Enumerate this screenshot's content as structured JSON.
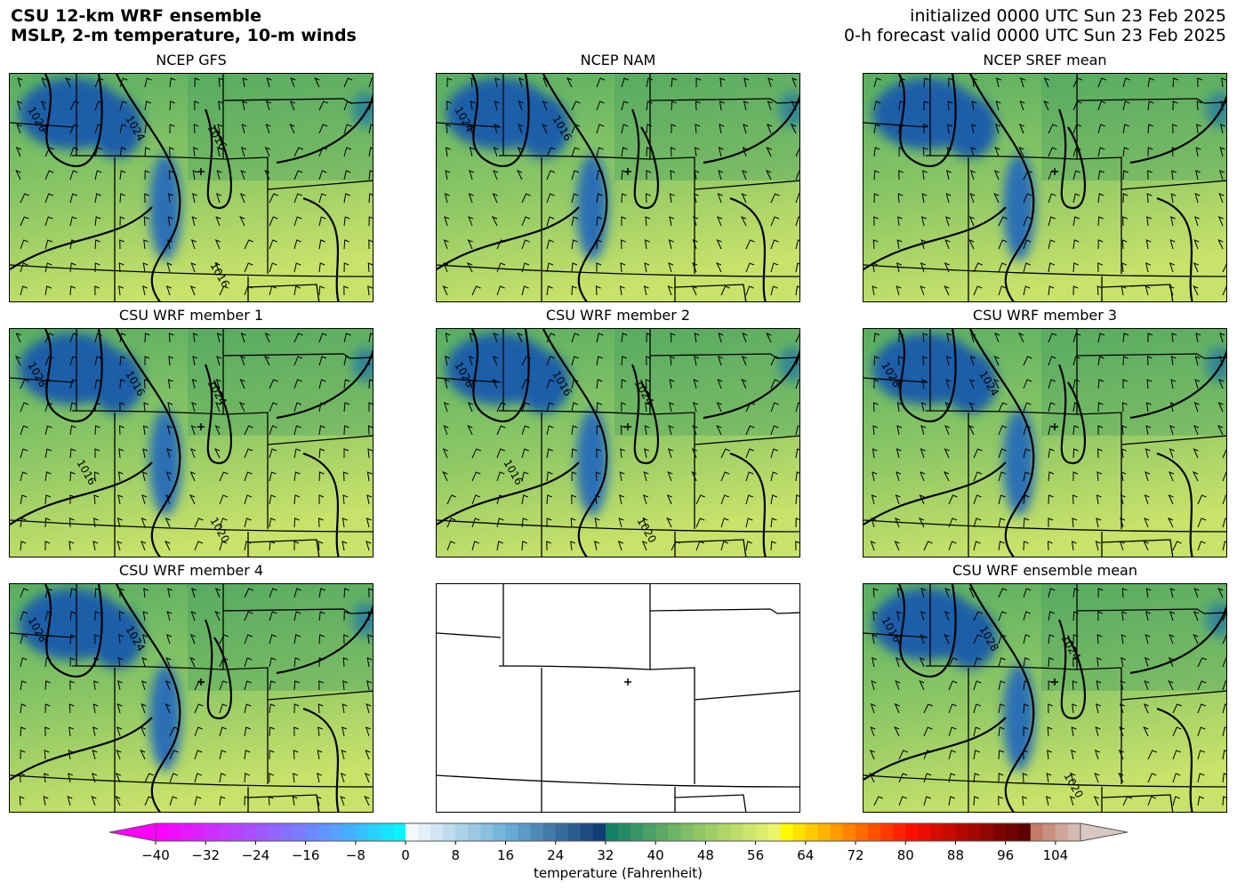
{
  "header": {
    "title_line1": "CSU 12-km WRF ensemble",
    "title_line2": "MSLP, 2-m temperature, 10-m winds",
    "init_line": "initialized 0000 UTC Sun 23 Feb 2025",
    "valid_line": "0-h forecast valid 0000 UTC Sun 23 Feb 2025"
  },
  "panels": [
    {
      "title": "NCEP GFS",
      "empty": false,
      "contour_labels": [
        "1020",
        "1024",
        "1016",
        "1016"
      ]
    },
    {
      "title": "NCEP NAM",
      "empty": false,
      "contour_labels": [
        "1024",
        "1016"
      ]
    },
    {
      "title": "NCEP SREF mean",
      "empty": false,
      "contour_labels": []
    },
    {
      "title": "CSU WRF member 1",
      "empty": false,
      "contour_labels": [
        "1028",
        "1016",
        "1024",
        "1020",
        "1016"
      ]
    },
    {
      "title": "CSU WRF member 2",
      "empty": false,
      "contour_labels": [
        "1028",
        "1016",
        "1024",
        "1020",
        "1016"
      ]
    },
    {
      "title": "CSU WRF member 3",
      "empty": false,
      "contour_labels": [
        "1028",
        "1024"
      ]
    },
    {
      "title": "CSU WRF member 4",
      "empty": false,
      "contour_labels": [
        "1028",
        "1024"
      ]
    },
    {
      "title": "",
      "empty": true,
      "contour_labels": []
    },
    {
      "title": "CSU WRF ensemble mean",
      "empty": false,
      "contour_labels": [
        "1016",
        "1028",
        "1024",
        "1020"
      ]
    }
  ],
  "colorbar": {
    "label": "temperature (Fahrenheit)",
    "min": -40,
    "max": 108,
    "step": 2,
    "ticks": [
      "−40",
      "−32",
      "−24",
      "−16",
      "−8",
      "0",
      "8",
      "16",
      "24",
      "32",
      "40",
      "48",
      "56",
      "64",
      "72",
      "80",
      "88",
      "96",
      "104"
    ],
    "extend": "both",
    "under_color": "#ff00ff",
    "over_color": "#d8c8c0",
    "anchors": [
      {
        "t": -40,
        "c": "#ff00ff"
      },
      {
        "t": -20,
        "c": "#8a6cff"
      },
      {
        "t": -10,
        "c": "#4aaaff"
      },
      {
        "t": -0.1,
        "c": "#00ffff"
      },
      {
        "t": 0,
        "c": "#f7fbff"
      },
      {
        "t": 16,
        "c": "#6aaed6"
      },
      {
        "t": 31.9,
        "c": "#08306b"
      },
      {
        "t": 32,
        "c": "#0e7e64"
      },
      {
        "t": 46,
        "c": "#8cc466"
      },
      {
        "t": 59.9,
        "c": "#f4fa6c"
      },
      {
        "t": 60,
        "c": "#ffff00"
      },
      {
        "t": 68,
        "c": "#ffa000"
      },
      {
        "t": 80,
        "c": "#ff1000"
      },
      {
        "t": 99.9,
        "c": "#500000"
      },
      {
        "t": 100,
        "c": "#c07860"
      },
      {
        "t": 107.9,
        "c": "#d8c8c0"
      }
    ]
  },
  "map_colors": {
    "base_green": "#58ae62",
    "light": "#c9e26a",
    "cold": "#1f5fa8",
    "border": "#000000"
  }
}
